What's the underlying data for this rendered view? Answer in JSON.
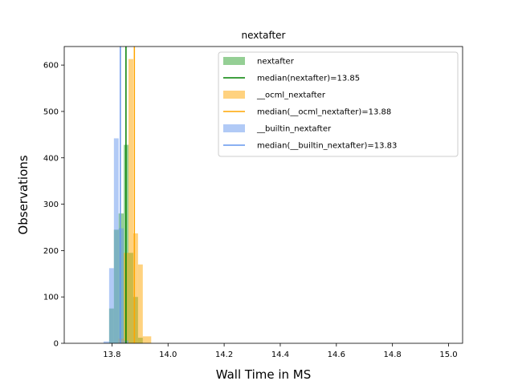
{
  "chart_data": {
    "type": "histogram",
    "title": "nextafter",
    "xlabel": "Wall Time in MS",
    "ylabel": "Observations",
    "xlim": [
      13.63,
      15.05
    ],
    "ylim": [
      0,
      640
    ],
    "xticks": [
      13.8,
      14.0,
      14.2,
      14.4,
      14.6,
      14.8,
      15.0
    ],
    "xtick_labels": [
      "13.8",
      "14.0",
      "14.2",
      "14.4",
      "14.6",
      "14.8",
      "15.0"
    ],
    "yticks": [
      0,
      100,
      200,
      300,
      400,
      500,
      600
    ],
    "ytick_labels": [
      "0",
      "100",
      "200",
      "300",
      "400",
      "500",
      "600"
    ],
    "legend_position": "top-right",
    "series": [
      {
        "name": "nextafter",
        "color": "#2ca02c",
        "opacity": 0.5,
        "bins": [
          {
            "x0": 13.79,
            "x1": 13.807,
            "count": 75
          },
          {
            "x0": 13.807,
            "x1": 13.824,
            "count": 245
          },
          {
            "x0": 13.824,
            "x1": 13.842,
            "count": 280
          },
          {
            "x0": 13.842,
            "x1": 13.859,
            "count": 428
          },
          {
            "x0": 13.859,
            "x1": 13.876,
            "count": 195
          },
          {
            "x0": 13.876,
            "x1": 13.893,
            "count": 100
          },
          {
            "x0": 13.893,
            "x1": 13.91,
            "count": 12
          }
        ],
        "median": 13.85,
        "median_color": "#008000",
        "median_label": "median(nextafter)=13.85"
      },
      {
        "name": "__ocml_nextafter",
        "color": "#ffa500",
        "opacity": 0.5,
        "bins": [
          {
            "x0": 13.824,
            "x1": 13.842,
            "count": 10
          },
          {
            "x0": 13.842,
            "x1": 13.859,
            "count": 195
          },
          {
            "x0": 13.859,
            "x1": 13.876,
            "count": 613
          },
          {
            "x0": 13.876,
            "x1": 13.893,
            "count": 237
          },
          {
            "x0": 13.893,
            "x1": 13.91,
            "count": 170
          },
          {
            "x0": 13.91,
            "x1": 13.94,
            "count": 15
          }
        ],
        "median": 13.88,
        "median_color": "#ffa500",
        "median_label": "median(__ocml_nextafter)=13.88"
      },
      {
        "name": "__builtin_nextafter",
        "color": "#6495ed",
        "opacity": 0.5,
        "bins": [
          {
            "x0": 13.77,
            "x1": 13.79,
            "count": 4
          },
          {
            "x0": 13.79,
            "x1": 13.807,
            "count": 162
          },
          {
            "x0": 13.807,
            "x1": 13.824,
            "count": 442
          },
          {
            "x0": 13.824,
            "x1": 13.842,
            "count": 248
          },
          {
            "x0": 13.842,
            "x1": 13.859,
            "count": 6
          }
        ],
        "median": 13.83,
        "median_color": "#6495ed",
        "median_label": "median(__builtin_nextafter)=13.83"
      }
    ]
  }
}
